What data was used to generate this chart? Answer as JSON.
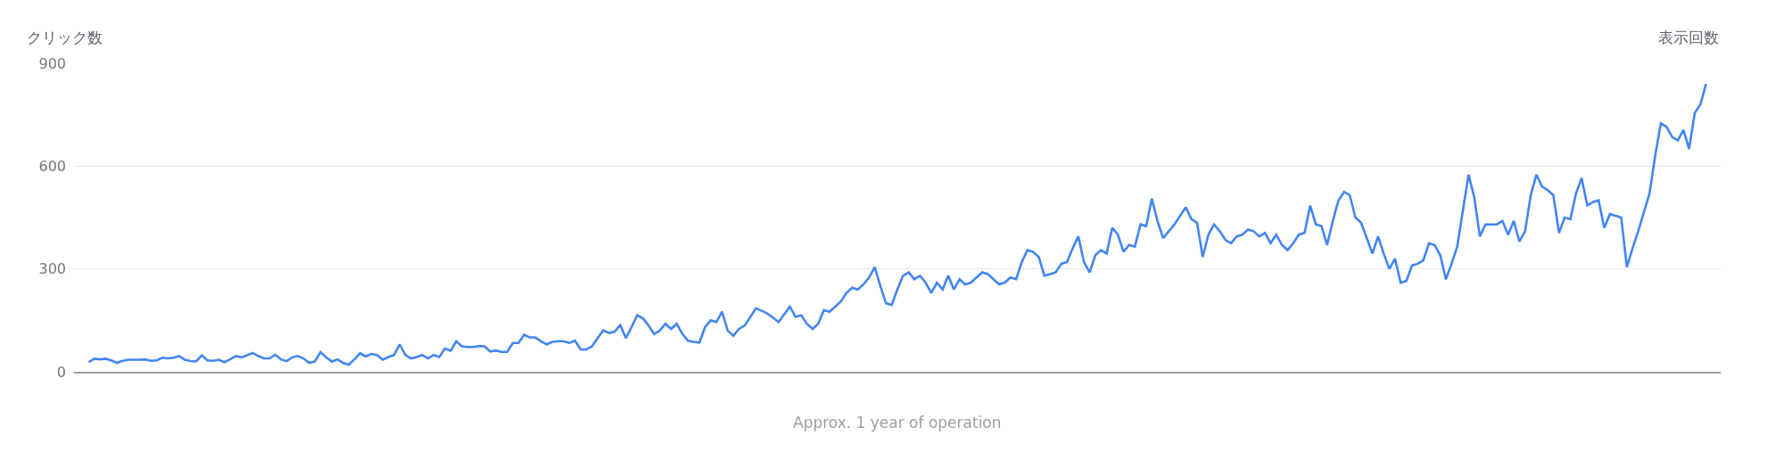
{
  "chart_data": {
    "type": "line",
    "ylabel": "クリック数",
    "y2label": "表示回数",
    "annotations": [
      "Approx. 1 year of operation"
    ],
    "categories": [
      null,
      null,
      null,
      null,
      null,
      null,
      null,
      null,
      null,
      null,
      null,
      null,
      null,
      null,
      null,
      null,
      null,
      null,
      null,
      null,
      null,
      null,
      null,
      null,
      null,
      null,
      null,
      null,
      null,
      null,
      null,
      null,
      null,
      null,
      null,
      null,
      null,
      null,
      null,
      null,
      null,
      null,
      null,
      null,
      null,
      null,
      null,
      null,
      null,
      null,
      null,
      null,
      null,
      null,
      null,
      null,
      null,
      null,
      null,
      null,
      null,
      null,
      null,
      null,
      null,
      null,
      null,
      null,
      null,
      null,
      null,
      null,
      null,
      null,
      null,
      null,
      null,
      null,
      null,
      null,
      null,
      null,
      null,
      null,
      null,
      null,
      null,
      null,
      null,
      null,
      null,
      null,
      null,
      null,
      null,
      null,
      null,
      null,
      null,
      null,
      null,
      null,
      null,
      null,
      null,
      null,
      null,
      null,
      null,
      null,
      null,
      null,
      null,
      null,
      null,
      null,
      null,
      null,
      null,
      null,
      null,
      null,
      null,
      null,
      null,
      null,
      null,
      null,
      null,
      null,
      null,
      null,
      null,
      null,
      null,
      null,
      null,
      null,
      null,
      null,
      null,
      null,
      null,
      null,
      null,
      null,
      null,
      null,
      null,
      null,
      null,
      null,
      null,
      null,
      null,
      null,
      null,
      null,
      null,
      null,
      null,
      null,
      null,
      null,
      null,
      null,
      null,
      null,
      null,
      null,
      null,
      null,
      null,
      null,
      null,
      null,
      null,
      null,
      null,
      null,
      null,
      null,
      null,
      null,
      null,
      null,
      null,
      null,
      null,
      null,
      null,
      null,
      null,
      null,
      null,
      null,
      null,
      null,
      null,
      null,
      null,
      null,
      null,
      null,
      null,
      null,
      null,
      null,
      null,
      null,
      null,
      null,
      null,
      null,
      null,
      null,
      null,
      null,
      null,
      null,
      null,
      null,
      null,
      null,
      null,
      null,
      null,
      null,
      null,
      null,
      null,
      null,
      null,
      null,
      null,
      null,
      null,
      null,
      null,
      null,
      null,
      null,
      null,
      null,
      null,
      null,
      null,
      null,
      null,
      null,
      null,
      null,
      null,
      null,
      null,
      null,
      null,
      null,
      null,
      null,
      null,
      null,
      null,
      null,
      null,
      null,
      null,
      null,
      null,
      null,
      null,
      null,
      null,
      null,
      null,
      null,
      null,
      null,
      null,
      null,
      null,
      null,
      null,
      null,
      null,
      null,
      null
    ],
    "series": [
      {
        "color": "#4285f4",
        "values": [
          28,
          38,
          36,
          38,
          33,
          26,
          32,
          35,
          35,
          35,
          36,
          32,
          33,
          41,
          39,
          41,
          46,
          35,
          31,
          30,
          48,
          33,
          32,
          35,
          28,
          36,
          46,
          42,
          48,
          55,
          46,
          39,
          39,
          50,
          36,
          31,
          42,
          46,
          39,
          26,
          30,
          57,
          42,
          30,
          36,
          26,
          21,
          36,
          54,
          45,
          52,
          49,
          35,
          43,
          49,
          80,
          49,
          39,
          43,
          49,
          39,
          49,
          43,
          68,
          61,
          89,
          74,
          72,
          72,
          75,
          74,
          59,
          62,
          58,
          58,
          84,
          84,
          108,
          100,
          100,
          89,
          80,
          87,
          89,
          89,
          84,
          91,
          65,
          65,
          74,
          98,
          121,
          113,
          117,
          136,
          98,
          130,
          165,
          156,
          135,
          110,
          120,
          140,
          125,
          140,
          110,
          90,
          87,
          85,
          130,
          150,
          145,
          175,
          120,
          105,
          125,
          135,
          160,
          185,
          178,
          170,
          158,
          145,
          168,
          190,
          160,
          165,
          140,
          125,
          140,
          180,
          175,
          190,
          205,
          230,
          245,
          240,
          255,
          275,
          305,
          250,
          200,
          195,
          240,
          280,
          290,
          270,
          280,
          260,
          230,
          260,
          240,
          280,
          240,
          270,
          255,
          260,
          275,
          290,
          285,
          270,
          255,
          260,
          275,
          270,
          320,
          355,
          350,
          335,
          280,
          285,
          290,
          315,
          320,
          360,
          395,
          320,
          290,
          340,
          355,
          345,
          420,
          400,
          350,
          370,
          365,
          430,
          425,
          505,
          440,
          390,
          410,
          430,
          455,
          480,
          445,
          435,
          335,
          400,
          430,
          410,
          385,
          375,
          395,
          400,
          415,
          410,
          395,
          405,
          375,
          400,
          370,
          355,
          375,
          400,
          405,
          485,
          430,
          425,
          370,
          440,
          500,
          525,
          515,
          450,
          435,
          390,
          345,
          395,
          345,
          300,
          330,
          260,
          265,
          310,
          315,
          325,
          375,
          370,
          340,
          270,
          315,
          365,
          470,
          575,
          510,
          395,
          430,
          430,
          430,
          440,
          400,
          440,
          380,
          410,
          515,
          575,
          540,
          530,
          515,
          405,
          450,
          445,
          520,
          565,
          485,
          495,
          500,
          420,
          460,
          455,
          450,
          305,
          360,
          410,
          465,
          520,
          630,
          725,
          715,
          685,
          675,
          705,
          650,
          755,
          780,
          840
        ]
      }
    ],
    "ylim": [
      0,
      900
    ],
    "yticks": [
      0,
      300,
      600,
      900
    ],
    "tick_labels": "y",
    "grid": "y",
    "marker": "none",
    "line_style": "solid"
  }
}
